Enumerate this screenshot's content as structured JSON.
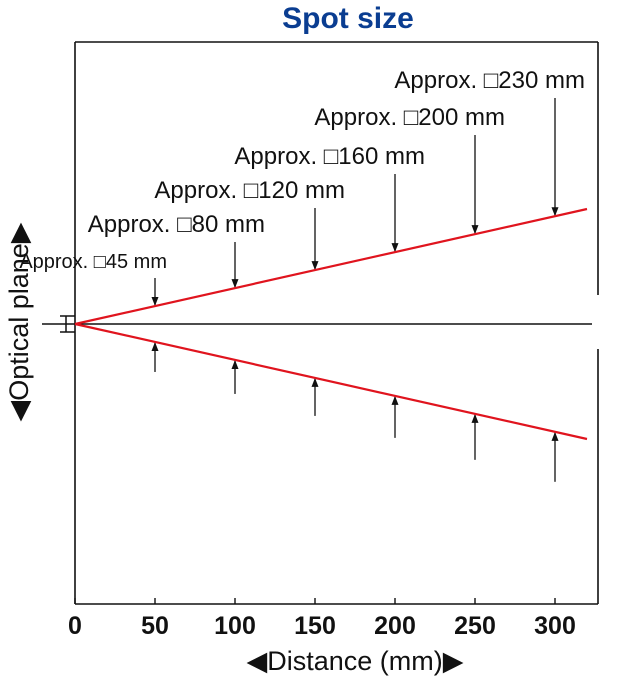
{
  "chart_data": {
    "type": "line",
    "title": "Spot size",
    "xlabel": "◀Distance (mm)▶",
    "ylabel": "◀Optical plane▶",
    "xlim": [
      0,
      322
    ],
    "x_ticks": [
      0,
      50,
      100,
      150,
      200,
      250,
      300
    ],
    "x_tick_labels": [
      "0",
      "50",
      "100",
      "150",
      "200",
      "250",
      "300"
    ],
    "series": [
      {
        "values": [
          [
            0,
            0
          ],
          [
            320,
            115
          ]
        ]
      },
      {
        "values": [
          [
            0,
            0
          ],
          [
            320,
            -115
          ]
        ]
      }
    ],
    "annotations": [
      {
        "x": 50,
        "text": "Approx. □45 mm"
      },
      {
        "x": 100,
        "text": "Approx. □80 mm"
      },
      {
        "x": 150,
        "text": "Approx. □120 mm"
      },
      {
        "x": 200,
        "text": "Approx. □160 mm"
      },
      {
        "x": 250,
        "text": "Approx. □200 mm"
      },
      {
        "x": 300,
        "text": "Approx. □230 mm"
      }
    ],
    "grid": false,
    "colors": {
      "beam": "#e0141e",
      "title": "#0a3d91",
      "axis": "#111111"
    }
  }
}
